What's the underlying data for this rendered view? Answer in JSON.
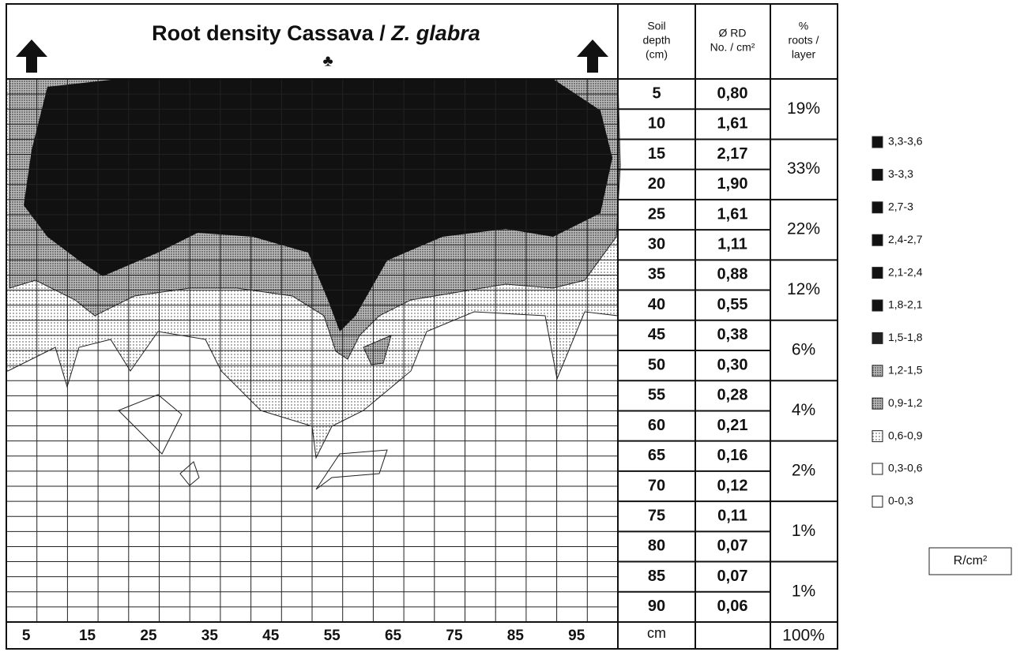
{
  "header": {
    "title": "Root density Cassava / ",
    "title_italic": "Z. glabra",
    "symbol": "♣",
    "depth_header": [
      "Soil",
      "depth",
      "(cm)"
    ],
    "rd_header": [
      "Ø RD",
      "No. / cm²"
    ],
    "pct_header": [
      "%",
      "roots /",
      "layer"
    ]
  },
  "table": {
    "depths": [
      "5",
      "10",
      "15",
      "20",
      "25",
      "30",
      "35",
      "40",
      "45",
      "50",
      "55",
      "60",
      "65",
      "70",
      "75",
      "80",
      "85",
      "90"
    ],
    "rd": [
      "0,80",
      "1,61",
      "2,17",
      "1,90",
      "1,61",
      "1,11",
      "0,88",
      "0,55",
      "0,38",
      "0,30",
      "0,28",
      "0,21",
      "0,16",
      "0,12",
      "0,11",
      "0,07",
      "0,07",
      "0,06"
    ],
    "percent": [
      "19%",
      "33%",
      "22%",
      "12%",
      "6%",
      "4%",
      "2%",
      "1%",
      "1%"
    ],
    "footer_unit": "cm",
    "footer_total": "100%"
  },
  "x_labels": [
    "5",
    "15",
    "25",
    "35",
    "45",
    "55",
    "65",
    "75",
    "85",
    "95"
  ],
  "legend": {
    "items": [
      "3,3-3,6",
      "3-3,3",
      "2,7-3",
      "2,4-2,7",
      "2,1-2,4",
      "1,8-2,1",
      "1,5-1,8",
      "1,2-1,5",
      "0,9-1,2",
      "0,6-0,9",
      "0,3-0,6",
      "0-0,3"
    ],
    "unit": "R/cm²"
  }
}
